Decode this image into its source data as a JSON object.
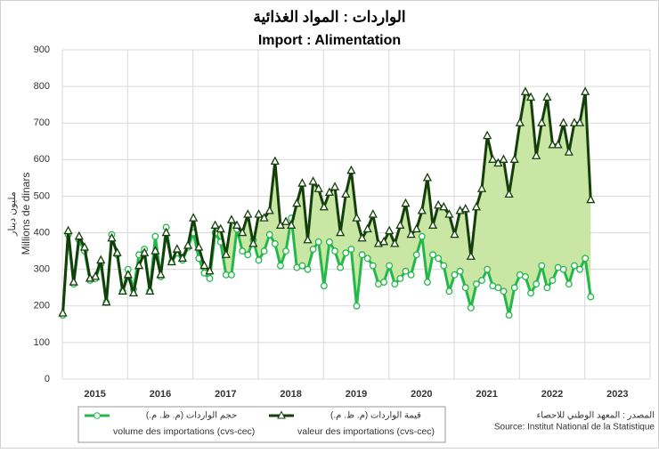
{
  "chart_data": {
    "type": "line",
    "title": "الواردات : المواد الغذائية",
    "subtitle": "Import : Alimentation",
    "y_label": "مليون دينار",
    "y_label_fr": "Millions de dinars",
    "source": "المصدر : المعهد الوطني للاحصاء",
    "source_fr": "Source: Institut National de la Statistique",
    "categories": [
      null,
      null,
      null,
      null,
      null,
      null,
      "2015",
      null,
      null,
      null,
      null,
      null,
      null,
      null,
      null,
      null,
      null,
      null,
      "2016",
      null,
      null,
      null,
      null,
      null,
      null,
      null,
      null,
      null,
      null,
      null,
      "2017",
      null,
      null,
      null,
      null,
      null,
      null,
      null,
      null,
      null,
      null,
      null,
      "2018",
      null,
      null,
      null,
      null,
      null,
      null,
      null,
      null,
      null,
      null,
      null,
      "2019",
      null,
      null,
      null,
      null,
      null,
      null,
      null,
      null,
      null,
      null,
      null,
      "2020",
      null,
      null,
      null,
      null,
      null,
      null,
      null,
      null,
      null,
      null,
      null,
      "2021",
      null,
      null,
      null,
      null,
      null,
      null,
      null,
      null,
      null,
      null,
      null,
      "2022",
      null,
      null,
      null,
      null,
      null,
      null,
      null,
      null,
      null,
      null,
      null,
      "2023",
      null,
      null,
      null,
      null,
      null
    ],
    "series": [
      {
        "name": "حجم الواردات (م. ظ. م.)",
        "name_fr": "volume des importations (cvs-cec)",
        "color": "#22b84a",
        "marker": "circle",
        "values": [
          175,
          395,
          260,
          380,
          350,
          270,
          275,
          315,
          210,
          395,
          340,
          240,
          300,
          245,
          340,
          355,
          240,
          390,
          280,
          415,
          320,
          345,
          325,
          360,
          400,
          330,
          290,
          275,
          400,
          375,
          285,
          285,
          410,
          350,
          340,
          380,
          325,
          350,
          395,
          370,
          310,
          350,
          440,
          305,
          310,
          300,
          355,
          375,
          255,
          375,
          350,
          305,
          345,
          355,
          200,
          340,
          330,
          310,
          260,
          265,
          310,
          260,
          275,
          295,
          285,
          340,
          390,
          265,
          340,
          330,
          310,
          240,
          285,
          295,
          250,
          195,
          260,
          270,
          300,
          255,
          250,
          240,
          175,
          250,
          285,
          280,
          235,
          260,
          310,
          250,
          270,
          305,
          300,
          260,
          310,
          300,
          330,
          225,
          null,
          null,
          null,
          null,
          null,
          null,
          null,
          null,
          null,
          null
        ]
      },
      {
        "name": "قيمة الواردات (م. ظ. م.)",
        "name_fr": "valeur des importations (cvs-cec)",
        "color": "#143f0a",
        "marker": "triangle",
        "values": [
          180,
          405,
          265,
          390,
          360,
          275,
          280,
          325,
          210,
          385,
          345,
          240,
          285,
          235,
          310,
          345,
          240,
          350,
          285,
          400,
          320,
          355,
          330,
          365,
          440,
          360,
          310,
          295,
          420,
          410,
          340,
          435,
          420,
          400,
          450,
          370,
          450,
          440,
          460,
          595,
          420,
          430,
          420,
          480,
          535,
          380,
          540,
          520,
          470,
          510,
          525,
          400,
          505,
          570,
          440,
          385,
          410,
          450,
          370,
          375,
          405,
          370,
          420,
          480,
          395,
          410,
          460,
          550,
          420,
          475,
          470,
          450,
          395,
          460,
          465,
          335,
          470,
          520,
          665,
          600,
          590,
          600,
          505,
          600,
          700,
          785,
          770,
          610,
          700,
          770,
          640,
          640,
          700,
          620,
          700,
          700,
          785,
          490,
          null,
          null,
          null,
          null,
          null,
          null,
          null,
          null,
          null,
          null
        ]
      }
    ],
    "fill_between": "#c9e6a4",
    "ylim": [
      0,
      900
    ],
    "yticks": [
      0,
      100,
      200,
      300,
      400,
      500,
      600,
      700,
      800,
      900
    ],
    "grid": true
  }
}
